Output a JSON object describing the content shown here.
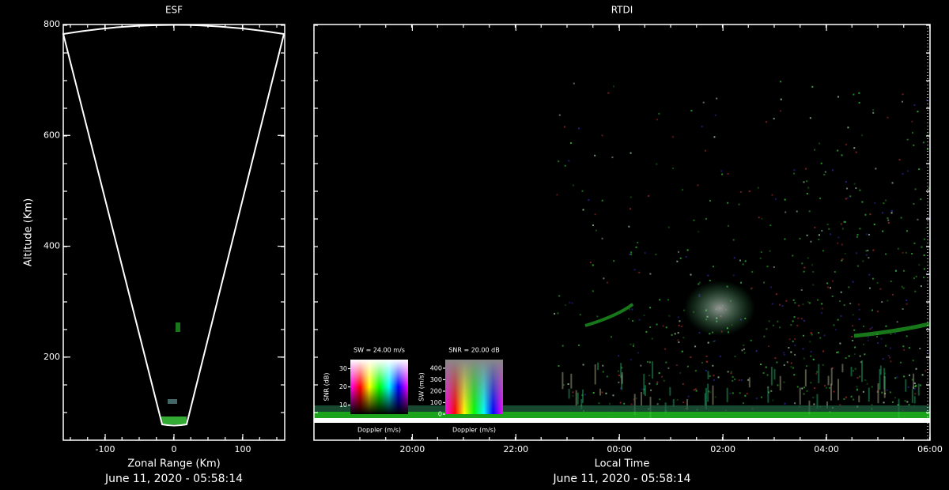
{
  "chart_data": [
    {
      "type": "fan",
      "title": "ESF",
      "x_label": "Zonal Range (Km)",
      "y_label": "Altitude (Km)",
      "xlim": [
        -161,
        161
      ],
      "ylim": [
        50,
        800
      ],
      "xticks": [
        -100,
        0,
        100
      ],
      "yticks": [
        200,
        400,
        600,
        800
      ],
      "footer": "June 11, 2020 - 05:58:14"
    },
    {
      "type": "rtdi",
      "title": "RTDI",
      "x_label": "Local Time",
      "xlim": [
        18.1,
        30
      ],
      "xticks": [
        {
          "value": 20,
          "label": "20:00"
        },
        {
          "value": 22,
          "label": "22:00"
        },
        {
          "value": 24,
          "label": "00:00"
        },
        {
          "value": 26,
          "label": "02:00"
        },
        {
          "value": 28,
          "label": "04:00"
        },
        {
          "value": 30,
          "label": "06:00"
        }
      ],
      "footer": "June 11, 2020 - 05:58:14",
      "insets": [
        {
          "title": "SW = 24.00 m/s",
          "y_label": "SNR (dB)",
          "x_label": "Doppler (m/s)",
          "ylim": [
            5,
            35
          ],
          "yticks": [
            10,
            20,
            30
          ],
          "style": "value"
        },
        {
          "title": "SNR = 20.00 dB",
          "y_label": "SW (m/s)",
          "x_label": "Doppler (m/s)",
          "ylim": [
            0,
            475
          ],
          "yticks": [
            0,
            100,
            200,
            300,
            400
          ],
          "style": "saturation"
        }
      ]
    }
  ]
}
